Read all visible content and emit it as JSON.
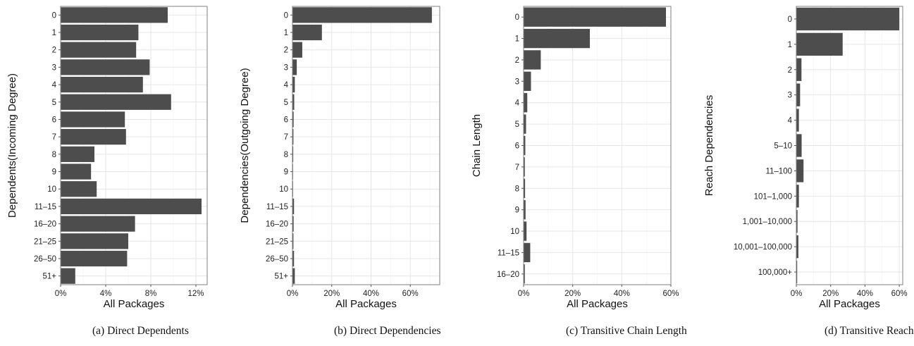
{
  "chart_data": [
    {
      "type": "bar",
      "orientation": "horizontal",
      "caption": "(a) Direct Dependents",
      "xlabel": "All Packages",
      "ylabel": "Dependents(Incoming Degree)",
      "categories": [
        "0",
        "1",
        "2",
        "3",
        "4",
        "5",
        "6",
        "7",
        "8",
        "9",
        "10",
        "11–15",
        "16–20",
        "21–25",
        "26–50",
        "51+"
      ],
      "values": [
        9.5,
        6.9,
        6.7,
        7.9,
        7.3,
        9.8,
        5.7,
        5.8,
        3.0,
        2.7,
        3.2,
        12.5,
        6.6,
        6.0,
        5.9,
        1.3
      ],
      "xlim": [
        0,
        13.0
      ],
      "xticks": [
        0,
        4,
        8,
        12
      ],
      "xtick_labels": [
        "0%",
        "4%",
        "8%",
        "12%"
      ],
      "grid": true
    },
    {
      "type": "bar",
      "orientation": "horizontal",
      "caption": "(b) Direct Dependencies",
      "xlabel": "All Packages",
      "ylabel": "Dependencies(Outgoing Degree)",
      "categories": [
        "0",
        "1",
        "2",
        "3",
        "4",
        "5",
        "6",
        "7",
        "8",
        "9",
        "10",
        "11–15",
        "16–20",
        "21–25",
        "26–50",
        "51+"
      ],
      "values": [
        71,
        15,
        5,
        2.2,
        1.2,
        0.9,
        0.6,
        0.5,
        0.4,
        0.3,
        0.3,
        0.8,
        0.6,
        0.5,
        0.8,
        1.2
      ],
      "xlim": [
        0,
        75
      ],
      "xticks": [
        0,
        20,
        40,
        60
      ],
      "xtick_labels": [
        "0%",
        "20%",
        "40%",
        "60%"
      ],
      "grid": true
    },
    {
      "type": "bar",
      "orientation": "horizontal",
      "caption": "(c) Transitive Chain Length",
      "xlabel": "All Packages",
      "ylabel": "Chain Length",
      "categories": [
        "0",
        "1",
        "2",
        "3",
        "4",
        "5",
        "6",
        "7",
        "8",
        "9",
        "10",
        "11–15",
        "16–20"
      ],
      "values": [
        58,
        27,
        7,
        3,
        1.5,
        1,
        0.7,
        0.5,
        0.6,
        0.8,
        1.2,
        2.7,
        0.5
      ],
      "xlim": [
        0,
        60
      ],
      "xticks": [
        0,
        20,
        40,
        60
      ],
      "xtick_labels": [
        "0%",
        "20%",
        "40%",
        "60%"
      ],
      "grid": true
    },
    {
      "type": "bar",
      "orientation": "horizontal",
      "caption": "(d) Transitive Reach Dependencies",
      "xlabel": "All Packages",
      "ylabel": "Reach Dependencies",
      "categories": [
        "0",
        "1",
        "2",
        "3",
        "4",
        "5–10",
        "11–100",
        "101–1,000",
        "1,001–10,000",
        "10,001–100,000",
        "100,000+"
      ],
      "values": [
        60,
        27,
        3,
        2.2,
        1.5,
        3.1,
        4.2,
        1.5,
        0.7,
        1.2,
        0.5
      ],
      "xlim": [
        0,
        62
      ],
      "xticks": [
        0,
        20,
        40,
        60
      ],
      "xtick_labels": [
        "0%",
        "20%",
        "40%",
        "60%"
      ],
      "grid": true
    }
  ]
}
